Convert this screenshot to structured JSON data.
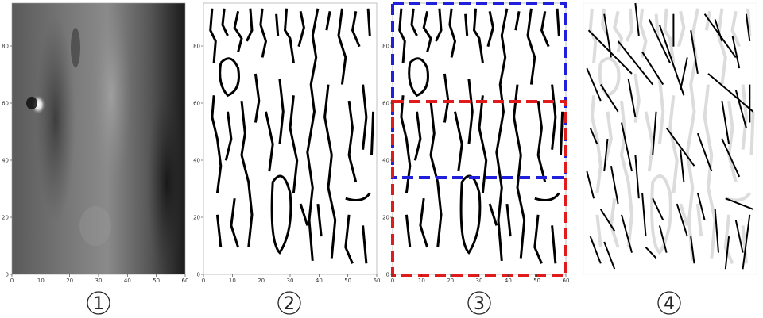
{
  "panels": [
    {
      "id": "p1",
      "label": "1",
      "kind": "grayscale-image",
      "x_ticks": [
        "0",
        "10",
        "20",
        "30",
        "40",
        "50",
        "60"
      ],
      "y_ticks": [
        "0",
        "20",
        "40",
        "60",
        "80"
      ]
    },
    {
      "id": "p2",
      "label": "2",
      "kind": "binary-edge-map",
      "x_ticks": [
        "0",
        "10",
        "20",
        "30",
        "40",
        "50",
        "60"
      ],
      "y_ticks": [
        "0",
        "20",
        "40",
        "60",
        "80"
      ]
    },
    {
      "id": "p3",
      "label": "3",
      "kind": "edge-map-with-regions",
      "x_ticks": [
        "0",
        "10",
        "20",
        "30",
        "40",
        "50",
        "60"
      ],
      "y_ticks": [
        "0",
        "20",
        "40",
        "60",
        "80"
      ],
      "regions": [
        {
          "name": "upper-region",
          "color": "#1f1fdc",
          "y_range": [
            33,
            95
          ]
        },
        {
          "name": "lower-region",
          "color": "#e01b1b",
          "y_range": [
            0,
            60
          ]
        }
      ]
    },
    {
      "id": "p4",
      "label": "4",
      "kind": "line-segment-overlay",
      "x_ticks": [],
      "y_ticks": []
    }
  ]
}
